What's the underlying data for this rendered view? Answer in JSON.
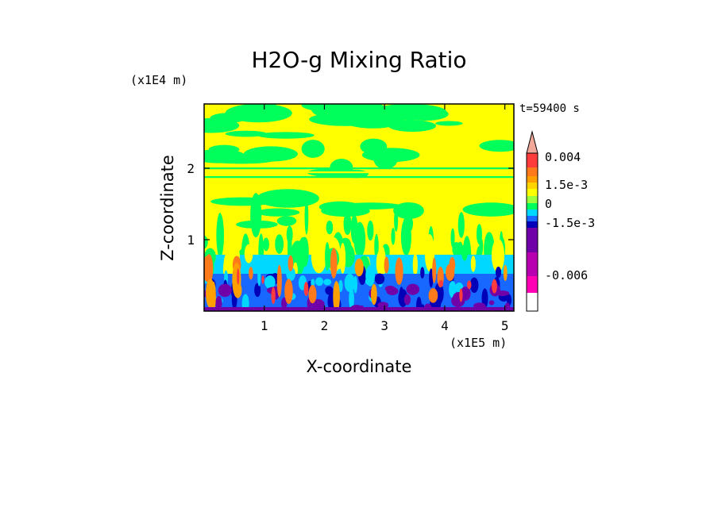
{
  "chart_data": {
    "type": "heatmap",
    "title": "H2O-g Mixing Ratio",
    "xlabel": "X-coordinate",
    "ylabel": "Z-coordinate",
    "x_unit": "(x1E5 m)",
    "y_unit": "(x1E4 m)",
    "time_label": "t=59400 s",
    "x_ticks": [
      "1",
      "2",
      "3",
      "4",
      "5"
    ],
    "x_tick_values": [
      1,
      2,
      3,
      4,
      5
    ],
    "y_ticks": [
      "1",
      "2"
    ],
    "y_tick_values": [
      1,
      2
    ],
    "xlim": [
      0,
      5.15
    ],
    "ylim": [
      0,
      2.9
    ],
    "colorbar": {
      "labels": [
        "0.004",
        "1.5e-3",
        "0",
        "-1.5e-3",
        "-0.006"
      ],
      "colors_top_to_bottom": [
        "#f2a898",
        "#ff3c3c",
        "#ff7a1a",
        "#ffa000",
        "#ffd400",
        "#ffff00",
        "#9cff3c",
        "#00ff5a",
        "#00d8ff",
        "#1868ff",
        "#0000b8",
        "#7000a8",
        "#b800b0",
        "#ff00b4"
      ],
      "extend": "max"
    }
  },
  "colors": {
    "yellow": "#ffff00",
    "green": "#00ff5a",
    "lime": "#9cff3c",
    "cyan": "#00d8ff",
    "blue": "#1868ff",
    "navy": "#0000b8",
    "purple": "#7000a8",
    "orange": "#ff7a1a",
    "red": "#ff3c3c",
    "gold": "#ffa000"
  }
}
